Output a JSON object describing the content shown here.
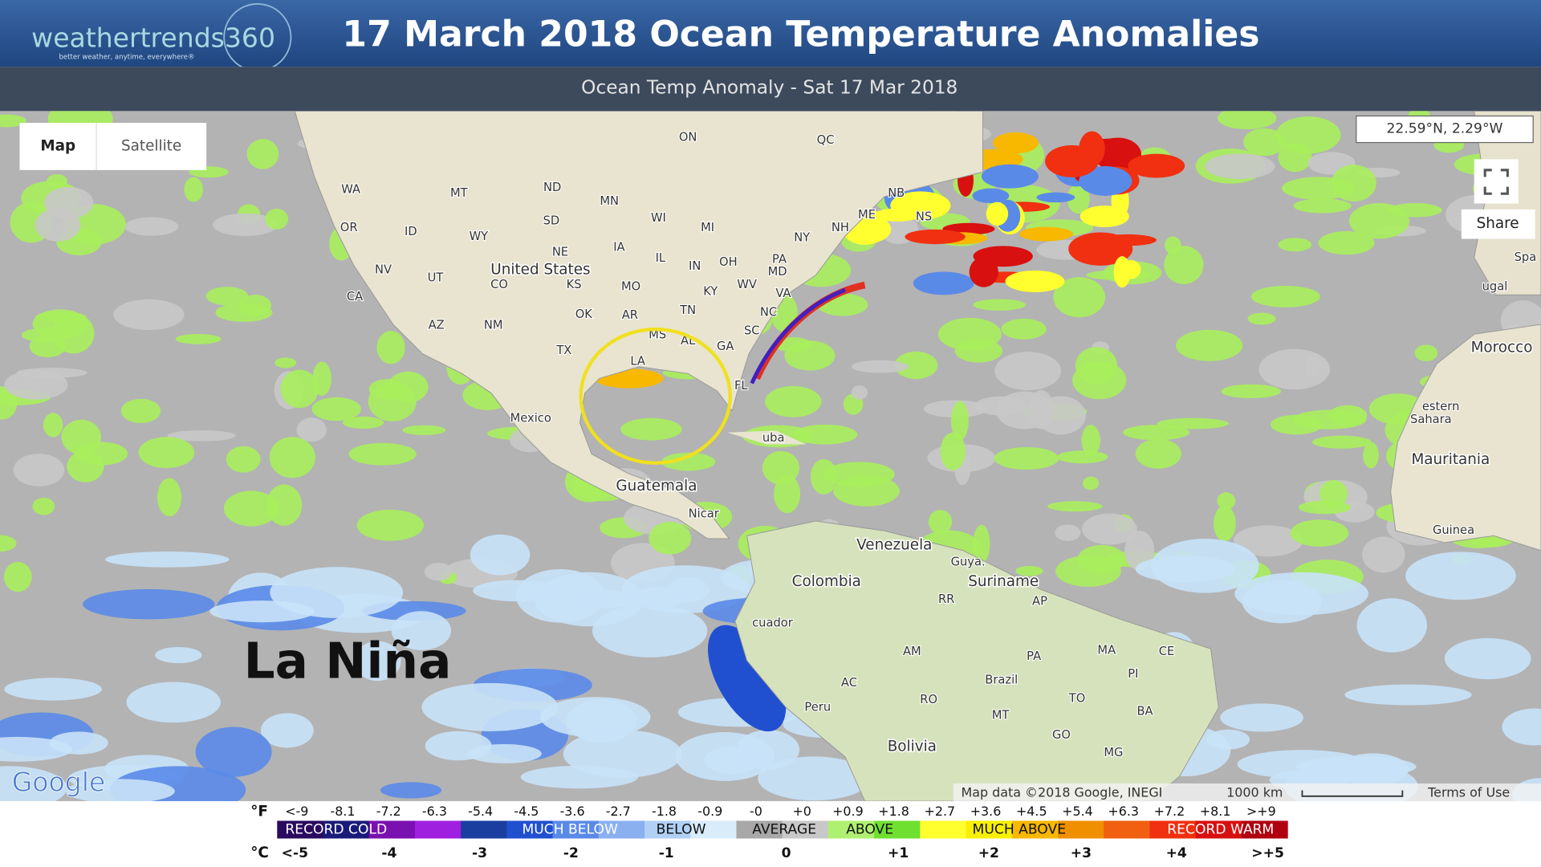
{
  "header": {
    "brand": "weathertrends360",
    "tagline": "better weather, anytime, everywhere®",
    "title": "17 March 2018 Ocean Temperature Anomalies",
    "subtitle": "Ocean Temp Anomaly - Sat 17 Mar 2018"
  },
  "map": {
    "controls": {
      "map": "Map",
      "satellite": "Satellite",
      "share": "Share"
    },
    "coordinates": "22.59°N, 2.29°W",
    "annotation": "La Niña",
    "google": "Google",
    "attribution": "Map data ©2018 Google, INEGI",
    "scale": "1000 km",
    "terms": "Terms of Use",
    "labels": [
      "ON",
      "QC",
      "WA",
      "MT",
      "ND",
      "MN",
      "SD",
      "WI",
      "MI",
      "NY",
      "OR",
      "ID",
      "WY",
      "NE",
      "IA",
      "IL",
      "IN",
      "OH",
      "PA",
      "NV",
      "UT",
      "United States",
      "CO",
      "KS",
      "MO",
      "KY",
      "WV",
      "MD",
      "VA",
      "CA",
      "AZ",
      "NM",
      "OK",
      "AR",
      "TN",
      "NC",
      "TX",
      "MS",
      "AL",
      "GA",
      "SC",
      "LA",
      "FL",
      "NB",
      "NS",
      "ME",
      "NH",
      "Mexico",
      "uba",
      "Guatemala",
      "Nicar",
      "Venezuela",
      "Colombia",
      "Guya.",
      "Suriname",
      "cuador",
      "RR",
      "AP",
      "AM",
      "PA",
      "MA",
      "CE",
      "PI",
      "AC",
      "Brazil",
      "RO",
      "Peru",
      "MT",
      "TO",
      "BA",
      "GO",
      "Bolivia",
      "MG",
      "Spa",
      "ugal",
      "Morocco",
      "estern",
      "Sahara",
      "Mauritania",
      "Guinea"
    ]
  },
  "legend": {
    "f_unit": "°F",
    "c_unit": "°C",
    "f_labels": [
      "<-9",
      "-8.1",
      "-7.2",
      "-6.3",
      "-5.4",
      "-4.5",
      "-3.6",
      "-2.7",
      "-1.8",
      "-0.9",
      "-0",
      "+0",
      "+0.9",
      "+1.8",
      "+2.7",
      "+3.6",
      "+4.5",
      "+5.4",
      "+6.3",
      "+7.2",
      "+8.1",
      ">+9"
    ],
    "categories": [
      "RECORD COLD",
      "MUCH BELOW",
      "BELOW",
      "AVERAGE",
      "ABOVE",
      "MUCH ABOVE",
      "RECORD WARM"
    ],
    "c_labels": [
      "<-5",
      "-4",
      "-3",
      "-2",
      "-1",
      "0",
      "+1",
      "+2",
      "+3",
      "+4",
      ">+5"
    ],
    "colors": [
      "#2a0a5e",
      "#1a1a7a",
      "#7a10b0",
      "#a020e0",
      "#1a3ea0",
      "#2050d0",
      "#5a8ae8",
      "#8ab0f0",
      "#b0d0f5",
      "#d8ecfa",
      "#a8a8a8",
      "#c8c8c8",
      "#b0f070",
      "#70e030",
      "#ffff30",
      "#f8f000",
      "#f8b800",
      "#f09000",
      "#f06010",
      "#f03010",
      "#d81010",
      "#b00010"
    ]
  }
}
